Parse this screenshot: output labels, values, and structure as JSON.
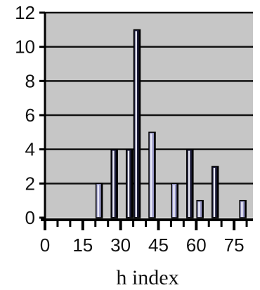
{
  "chart_data": {
    "type": "bar",
    "title": "",
    "xlabel": "h index",
    "ylabel": "",
    "xlim": [
      0,
      82.5
    ],
    "ylim": [
      0,
      12
    ],
    "y_ticks": [
      0,
      2,
      4,
      6,
      8,
      10,
      12
    ],
    "x_ticks": [
      0,
      15,
      30,
      45,
      60,
      75
    ],
    "x_tick_labels": [
      "0",
      "15",
      "30",
      "45",
      "60",
      "75"
    ],
    "grid": "horizontal",
    "legend": "none",
    "bars": [
      {
        "x": 21.5,
        "value": 2,
        "color": "#9898c8"
      },
      {
        "x": 27.5,
        "value": 4,
        "color": "#1c1c3a"
      },
      {
        "x": 33.5,
        "value": 4,
        "color": "#1c1c3a"
      },
      {
        "x": 36.5,
        "value": 11,
        "color": "#1c1c3a"
      },
      {
        "x": 42.5,
        "value": 5,
        "color": "#9898c8"
      },
      {
        "x": 51.5,
        "value": 2,
        "color": "#9898c8"
      },
      {
        "x": 57.5,
        "value": 4,
        "color": "#1c1c3a"
      },
      {
        "x": 61.5,
        "value": 1,
        "color": "#9898c8"
      },
      {
        "x": 67.5,
        "value": 3,
        "color": "#1c1c3a"
      },
      {
        "x": 78.5,
        "value": 1,
        "color": "#9898c8"
      }
    ],
    "colors": {
      "plot_background": "#c6c6c6",
      "gridline": "#111111",
      "bar_dark": "#1c1c3a",
      "bar_light": "#9898c8",
      "bar_highlight": "#e8e8f4",
      "axis": "#000000"
    }
  }
}
